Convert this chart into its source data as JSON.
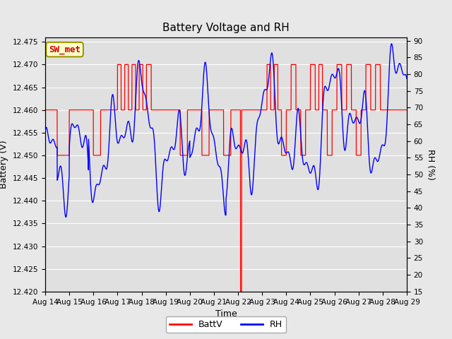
{
  "title": "Battery Voltage and RH",
  "xlabel": "Time",
  "ylabel_left": "Battery (V)",
  "ylabel_right": "RH (%)",
  "annotation": "SW_met",
  "legend_labels": [
    "BattV",
    "RH"
  ],
  "legend_colors": [
    "red",
    "blue"
  ],
  "ylim_left": [
    12.42,
    12.476
  ],
  "ylim_right": [
    15,
    91
  ],
  "yticks_left": [
    12.42,
    12.425,
    12.43,
    12.435,
    12.44,
    12.445,
    12.45,
    12.455,
    12.46,
    12.465,
    12.47,
    12.475
  ],
  "yticks_right": [
    15,
    20,
    25,
    30,
    35,
    40,
    45,
    50,
    55,
    60,
    65,
    70,
    75,
    80,
    85,
    90
  ],
  "xtick_labels": [
    "Aug 14",
    "Aug 15",
    "Aug 16",
    "Aug 17",
    "Aug 18",
    "Aug 19",
    "Aug 20",
    "Aug 21",
    "Aug 22",
    "Aug 23",
    "Aug 24",
    "Aug 25",
    "Aug 26",
    "Aug 27",
    "Aug 28",
    "Aug 29"
  ],
  "bg_color": "#e8e8e8",
  "plot_bg_color": "#e0e0e0",
  "grid_color": "#cccccc",
  "annotation_bg": "#ffffcc",
  "annotation_border": "#999900",
  "title_fontsize": 11,
  "axis_fontsize": 9,
  "tick_fontsize": 7.5
}
